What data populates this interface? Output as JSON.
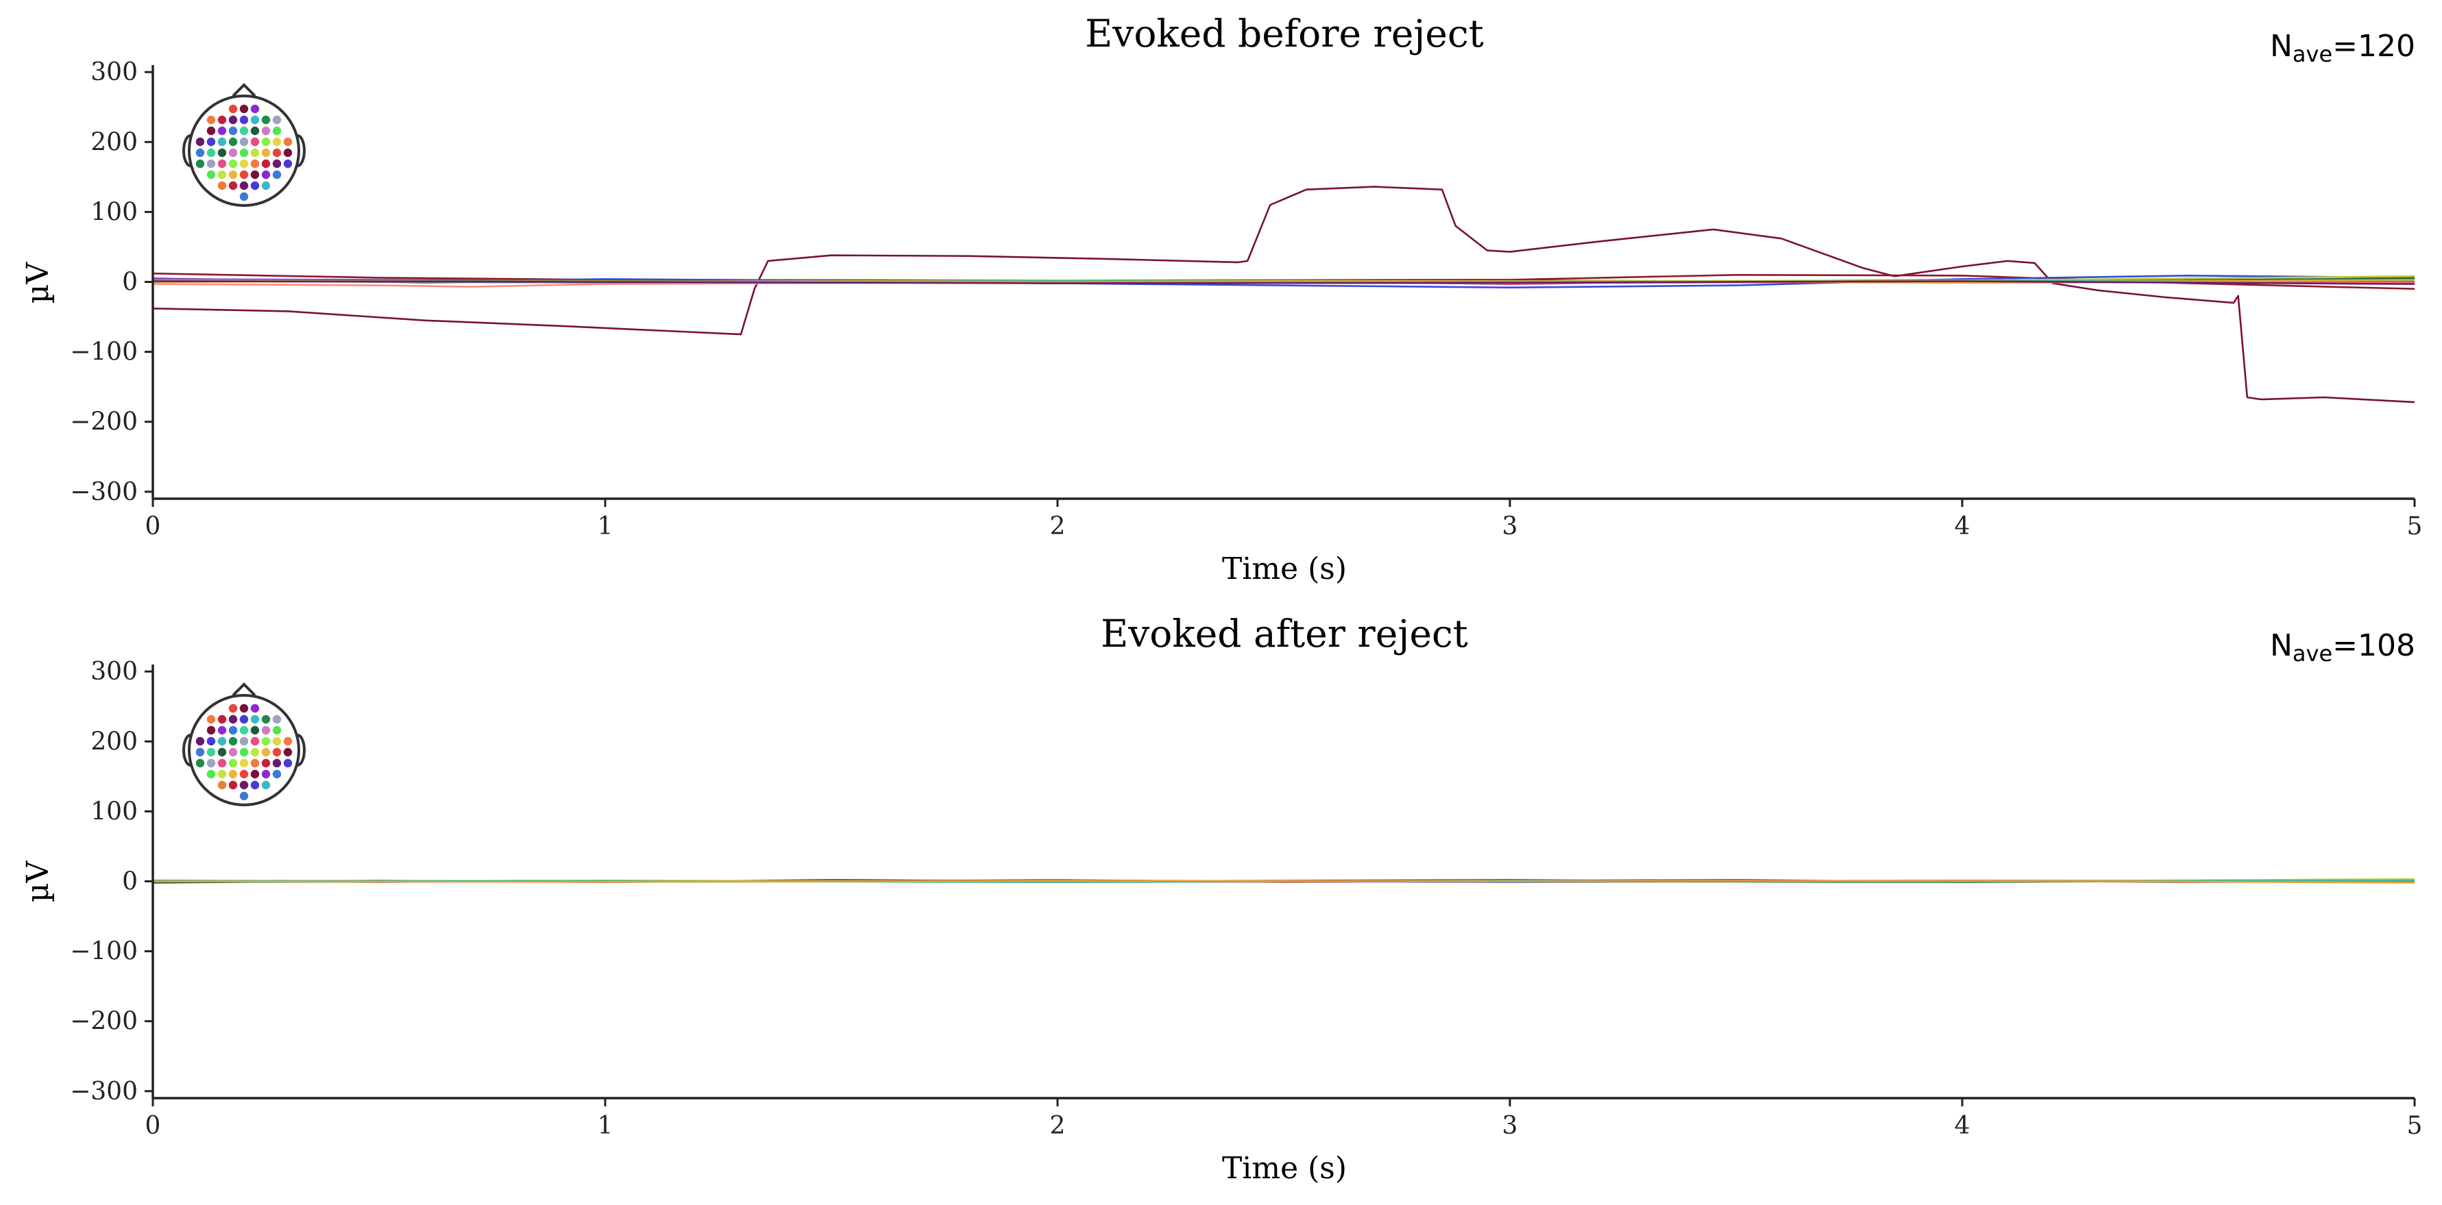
{
  "chart_data": [
    {
      "type": "line",
      "title": "Evoked before reject",
      "nave": {
        "symbol": "N",
        "subscript": "ave",
        "value": "=120"
      },
      "xlabel": "Time (s)",
      "ylabel": "µV",
      "xlim": [
        0,
        5
      ],
      "ylim": [
        -310,
        310
      ],
      "xticks": [
        {
          "v": 0,
          "label": "0"
        },
        {
          "v": 1,
          "label": "1"
        },
        {
          "v": 2,
          "label": "2"
        },
        {
          "v": 3,
          "label": "3"
        },
        {
          "v": 4,
          "label": "4"
        },
        {
          "v": 5,
          "label": "5"
        }
      ],
      "yticks": [
        {
          "v": 300,
          "label": "300"
        },
        {
          "v": 200,
          "label": "200"
        },
        {
          "v": 100,
          "label": "100"
        },
        {
          "v": 0,
          "label": "0"
        },
        {
          "v": -100,
          "label": "−100"
        },
        {
          "v": -200,
          "label": "−200"
        },
        {
          "v": -300,
          "label": "−300"
        }
      ],
      "grid": false,
      "series": [
        {
          "color": "#7a0f3c",
          "points": [
            [
              0,
              -38
            ],
            [
              0.3,
              -42
            ],
            [
              0.6,
              -55
            ],
            [
              0.9,
              -63
            ],
            [
              1.2,
              -72
            ],
            [
              1.3,
              -75
            ],
            [
              1.33,
              -10
            ],
            [
              1.36,
              30
            ],
            [
              1.5,
              38
            ],
            [
              1.8,
              37
            ],
            [
              2.1,
              33
            ],
            [
              2.4,
              28
            ],
            [
              2.42,
              30
            ],
            [
              2.47,
              110
            ],
            [
              2.55,
              132
            ],
            [
              2.7,
              136
            ],
            [
              2.85,
              132
            ],
            [
              2.88,
              80
            ],
            [
              2.95,
              45
            ],
            [
              3.0,
              43
            ],
            [
              3.2,
              58
            ],
            [
              3.45,
              75
            ],
            [
              3.6,
              62
            ],
            [
              3.78,
              20
            ],
            [
              3.85,
              8
            ],
            [
              4.0,
              22
            ],
            [
              4.1,
              30
            ],
            [
              4.16,
              27
            ],
            [
              4.2,
              -2
            ],
            [
              4.3,
              -12
            ],
            [
              4.45,
              -22
            ],
            [
              4.6,
              -30
            ],
            [
              4.61,
              -20
            ],
            [
              4.63,
              -165
            ],
            [
              4.66,
              -168
            ],
            [
              4.8,
              -165
            ],
            [
              5.0,
              -172
            ]
          ]
        },
        {
          "color": "#8a1a2a",
          "points": [
            [
              0,
              12
            ],
            [
              0.5,
              6
            ],
            [
              1,
              3
            ],
            [
              2,
              2
            ],
            [
              3,
              3
            ],
            [
              3.5,
              10
            ],
            [
              4,
              9
            ],
            [
              4.5,
              -2
            ],
            [
              5,
              -10
            ]
          ]
        },
        {
          "color": "#c41e3a",
          "points": [
            [
              0,
              5
            ],
            [
              0.6,
              -1
            ],
            [
              1.2,
              3
            ],
            [
              2,
              -2
            ],
            [
              2.5,
              1
            ],
            [
              3,
              -3
            ],
            [
              3.5,
              1
            ],
            [
              4,
              3
            ],
            [
              4.6,
              -2
            ],
            [
              5,
              1
            ]
          ]
        },
        {
          "color": "#e0407a",
          "points": [
            [
              0,
              2
            ],
            [
              0.5,
              0
            ],
            [
              1,
              -1
            ],
            [
              2,
              1
            ],
            [
              3,
              0
            ],
            [
              4,
              -1
            ],
            [
              5,
              0
            ]
          ]
        },
        {
          "color": "#ff8a80",
          "points": [
            [
              0,
              -3
            ],
            [
              0.5,
              -5
            ],
            [
              0.7,
              -7
            ],
            [
              1,
              -3
            ],
            [
              2,
              0
            ],
            [
              3,
              -2
            ],
            [
              4,
              0
            ],
            [
              5,
              -2
            ]
          ]
        },
        {
          "color": "#3a4ad4",
          "points": [
            [
              0,
              3
            ],
            [
              0.5,
              0
            ],
            [
              1,
              4
            ],
            [
              1.5,
              2
            ],
            [
              2,
              -2
            ],
            [
              2.5,
              -5
            ],
            [
              3,
              -8
            ],
            [
              3.5,
              -5
            ],
            [
              4,
              4
            ],
            [
              4.5,
              9
            ],
            [
              5,
              6
            ]
          ]
        },
        {
          "color": "#8a4ad4",
          "points": [
            [
              0,
              4
            ],
            [
              1,
              2
            ],
            [
              2,
              -1
            ],
            [
              3,
              -2
            ],
            [
              4,
              2
            ],
            [
              5,
              3
            ]
          ]
        },
        {
          "color": "#1f6a2f",
          "points": [
            [
              0,
              0
            ],
            [
              1,
              2
            ],
            [
              2,
              -2
            ],
            [
              3,
              2
            ],
            [
              4,
              0
            ],
            [
              5,
              5
            ]
          ]
        },
        {
          "color": "#b8c83a",
          "points": [
            [
              0,
              2
            ],
            [
              1,
              0
            ],
            [
              2,
              2
            ],
            [
              3,
              1
            ],
            [
              4,
              2
            ],
            [
              5,
              8
            ]
          ]
        },
        {
          "color": "#3ab8a0",
          "points": [
            [
              0,
              1
            ],
            [
              1,
              -1
            ],
            [
              2,
              1
            ],
            [
              3,
              -1
            ],
            [
              4,
              1
            ],
            [
              5,
              2
            ]
          ]
        },
        {
          "color": "#e6a23a",
          "points": [
            [
              0,
              0
            ],
            [
              1,
              1
            ],
            [
              2,
              -1
            ],
            [
              3,
              1
            ],
            [
              4,
              -1
            ],
            [
              5,
              3
            ]
          ]
        },
        {
          "color": "#6a1a6a",
          "points": [
            [
              0,
              1
            ],
            [
              1,
              0
            ],
            [
              2,
              -2
            ],
            [
              3,
              -1
            ],
            [
              4,
              1
            ],
            [
              5,
              -3
            ]
          ]
        }
      ]
    },
    {
      "type": "line",
      "title": "Evoked after reject",
      "nave": {
        "symbol": "N",
        "subscript": "ave",
        "value": "=108"
      },
      "xlabel": "Time (s)",
      "ylabel": "µV",
      "xlim": [
        0,
        5
      ],
      "ylim": [
        -310,
        310
      ],
      "xticks": [
        {
          "v": 0,
          "label": "0"
        },
        {
          "v": 1,
          "label": "1"
        },
        {
          "v": 2,
          "label": "2"
        },
        {
          "v": 3,
          "label": "3"
        },
        {
          "v": 4,
          "label": "4"
        },
        {
          "v": 5,
          "label": "5"
        }
      ],
      "yticks": [
        {
          "v": 300,
          "label": "300"
        },
        {
          "v": 200,
          "label": "200"
        },
        {
          "v": 100,
          "label": "100"
        },
        {
          "v": 0,
          "label": "0"
        },
        {
          "v": -100,
          "label": "−100"
        },
        {
          "v": -200,
          "label": "−200"
        },
        {
          "v": -300,
          "label": "−300"
        }
      ],
      "grid": false,
      "series": [
        {
          "color": "#7a0f3c",
          "points": [
            [
              0,
              -2
            ],
            [
              0.5,
              1
            ],
            [
              1,
              -1
            ],
            [
              1.5,
              2
            ],
            [
              2,
              0
            ],
            [
              2.5,
              1
            ],
            [
              3,
              2
            ],
            [
              3.5,
              0
            ],
            [
              4,
              1
            ],
            [
              4.5,
              -1
            ],
            [
              5,
              0
            ]
          ]
        },
        {
          "color": "#c41e3a",
          "points": [
            [
              0,
              1
            ],
            [
              0.5,
              -1
            ],
            [
              1,
              1
            ],
            [
              1.5,
              0
            ],
            [
              2,
              2
            ],
            [
              2.5,
              -1
            ],
            [
              3,
              1
            ],
            [
              3.5,
              2
            ],
            [
              4,
              -1
            ],
            [
              4.5,
              1
            ],
            [
              5,
              -1
            ]
          ]
        },
        {
          "color": "#e0407a",
          "points": [
            [
              0,
              0
            ],
            [
              1,
              1
            ],
            [
              2,
              -1
            ],
            [
              3,
              0
            ],
            [
              4,
              1
            ],
            [
              5,
              -1
            ]
          ]
        },
        {
          "color": "#3a4ad4",
          "points": [
            [
              0,
              1
            ],
            [
              1,
              -1
            ],
            [
              2,
              1
            ],
            [
              3,
              -1
            ],
            [
              4,
              1
            ],
            [
              5,
              1
            ]
          ]
        },
        {
          "color": "#1f6a2f",
          "points": [
            [
              0,
              -1
            ],
            [
              1,
              0
            ],
            [
              2,
              1
            ],
            [
              3,
              0
            ],
            [
              4,
              -1
            ],
            [
              5,
              2
            ]
          ]
        },
        {
          "color": "#b8c83a",
          "points": [
            [
              0,
              0
            ],
            [
              1,
              1
            ],
            [
              2,
              0
            ],
            [
              3,
              1
            ],
            [
              4,
              0
            ],
            [
              5,
              3
            ]
          ]
        },
        {
          "color": "#3ab8a0",
          "points": [
            [
              0,
              1
            ],
            [
              1,
              0
            ],
            [
              2,
              -1
            ],
            [
              3,
              1
            ],
            [
              4,
              0
            ],
            [
              5,
              1
            ]
          ]
        },
        {
          "color": "#e6a23a",
          "points": [
            [
              0,
              0
            ],
            [
              1,
              -1
            ],
            [
              2,
              1
            ],
            [
              3,
              0
            ],
            [
              4,
              1
            ],
            [
              5,
              -2
            ]
          ]
        }
      ]
    }
  ],
  "sensor_colors": [
    "#4de84d",
    "#86f046",
    "#bde83a",
    "#e6d640",
    "#f0b43a",
    "#f07a3a",
    "#e8463a",
    "#c41e3a",
    "#7a0f3c",
    "#6a1a6a",
    "#8a2ad4",
    "#4a3ad4",
    "#3a7ad4",
    "#3ab8c8",
    "#3ad49a",
    "#1f8a4a",
    "#1f5a3a",
    "#a0a0c0",
    "#d478c8",
    "#e84a8a"
  ]
}
